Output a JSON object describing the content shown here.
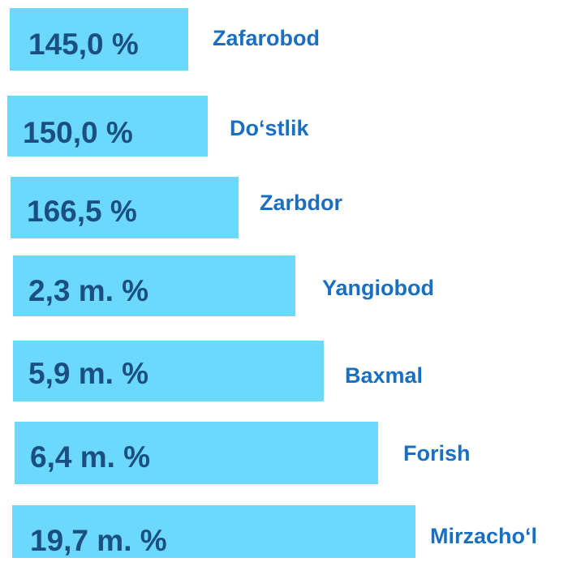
{
  "items": [
    {
      "value": "145,0 %",
      "name": "Zafarobod"
    },
    {
      "value": "150,0 %",
      "name": "Do‘stlik"
    },
    {
      "value": "166,5 %",
      "name": "Zarbdor"
    },
    {
      "value": "2,3 m. %",
      "name": "Yangiobod"
    },
    {
      "value": "5,9 m. %",
      "name": "Baxmal"
    },
    {
      "value": "6,4 m. %",
      "name": "Forish"
    },
    {
      "value": "19,7 m. %",
      "name": "Mirzacho‘l"
    }
  ]
}
